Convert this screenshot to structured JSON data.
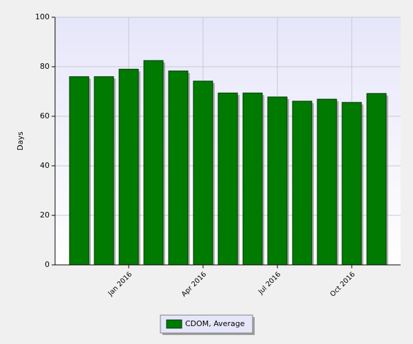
{
  "chart_data": {
    "type": "bar",
    "y_label": "Days",
    "categories": [
      null,
      null,
      "Jan 2016",
      null,
      null,
      "Apr 2016",
      null,
      null,
      "Jul 2016",
      null,
      null,
      "Oct 2016",
      null
    ],
    "series": [
      {
        "name": "CDOM, Average",
        "color": "#007a00",
        "values": [
          76,
          76,
          79,
          82.5,
          78.3,
          74.2,
          69.4,
          69.4,
          67.8,
          66.1,
          66.9,
          65.6,
          69.2
        ]
      }
    ],
    "ylim": [
      0,
      100
    ],
    "yticks": [
      0,
      20,
      40,
      60,
      80,
      100
    ],
    "grid": true
  }
}
